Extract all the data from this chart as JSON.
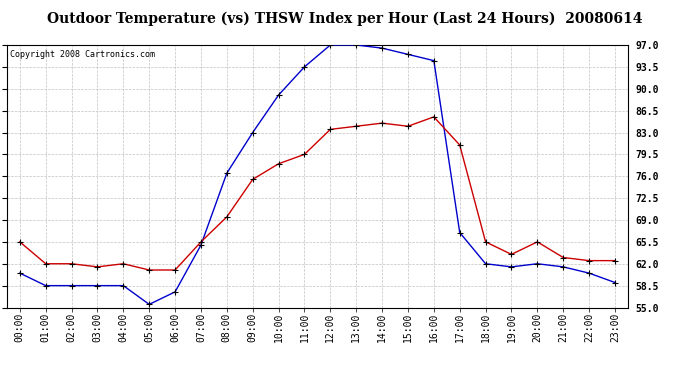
{
  "title": "Outdoor Temperature (vs) THSW Index per Hour (Last 24 Hours)  20080614",
  "copyright": "Copyright 2008 Cartronics.com",
  "hours": [
    "00:00",
    "01:00",
    "02:00",
    "03:00",
    "04:00",
    "05:00",
    "06:00",
    "07:00",
    "08:00",
    "09:00",
    "10:00",
    "11:00",
    "12:00",
    "13:00",
    "14:00",
    "15:00",
    "16:00",
    "17:00",
    "18:00",
    "19:00",
    "20:00",
    "21:00",
    "22:00",
    "23:00"
  ],
  "temp": [
    65.5,
    62.0,
    62.0,
    61.5,
    62.0,
    61.0,
    61.0,
    65.5,
    69.5,
    75.5,
    78.0,
    79.5,
    83.5,
    84.0,
    84.5,
    84.0,
    85.5,
    81.0,
    65.5,
    63.5,
    65.5,
    63.0,
    62.5,
    62.5
  ],
  "thsw": [
    60.5,
    58.5,
    58.5,
    58.5,
    58.5,
    55.5,
    57.5,
    65.0,
    76.5,
    83.0,
    89.0,
    93.5,
    97.0,
    97.0,
    96.5,
    95.5,
    94.5,
    67.0,
    62.0,
    61.5,
    62.0,
    61.5,
    60.5,
    59.0
  ],
  "ylim_min": 55.0,
  "ylim_max": 97.0,
  "yticks": [
    55.0,
    58.5,
    62.0,
    65.5,
    69.0,
    72.5,
    76.0,
    79.5,
    83.0,
    86.5,
    90.0,
    93.5,
    97.0
  ],
  "temp_color": "#cc0000",
  "thsw_color": "#0000cc",
  "bg_color": "#ffffff",
  "grid_color": "#bbbbbb",
  "title_fontsize": 10,
  "axis_fontsize": 7,
  "copyright_fontsize": 6
}
